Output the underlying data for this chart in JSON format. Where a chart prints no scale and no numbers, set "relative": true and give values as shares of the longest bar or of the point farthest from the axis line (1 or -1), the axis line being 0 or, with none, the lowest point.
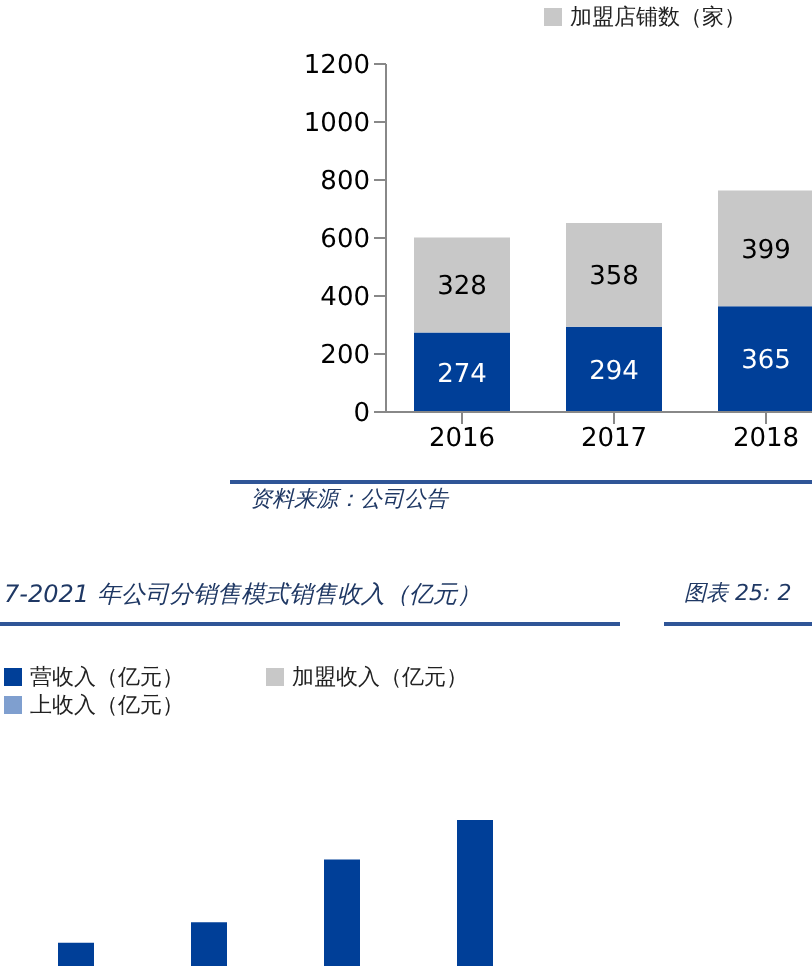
{
  "chart_data": [
    {
      "type": "bar",
      "stacked": true,
      "categories": [
        "2016",
        "2017",
        "2018"
      ],
      "series": [
        {
          "color": "#003f98",
          "values": [
            274,
            294,
            365
          ]
        },
        {
          "name": "加盟店铺数（家）",
          "color": "#c8c8c8",
          "values": [
            328,
            358,
            399
          ]
        }
      ],
      "ylim": [
        0,
        1200
      ],
      "yticks": [
        0,
        200,
        400,
        600,
        800,
        1000,
        1200
      ],
      "data_labels": true,
      "legend": "top right",
      "grid": false,
      "annotations": [
        "资料来源：公司公告"
      ]
    },
    {
      "type": "bar",
      "stacked": true,
      "relative": true,
      "title": "7-2021 年公司分销售模式销售收入（亿元）",
      "categories": [
        null,
        null,
        null,
        null
      ],
      "series": [
        {
          "name": "营收入（亿元）",
          "color": "#003f98",
          "values": [
            0.16,
            0.3,
            0.73,
            1
          ]
        },
        {
          "name": "上收入（亿元）",
          "color": "#7f9fcf",
          "values": [
            null,
            null,
            null,
            null
          ]
        },
        {
          "name": "加盟收入（亿元）",
          "color": "#c8c8c8",
          "values": [
            null,
            null,
            null,
            null
          ]
        }
      ],
      "legend": "top",
      "grid": false,
      "annotations": [
        "图表 25: 2"
      ]
    }
  ]
}
